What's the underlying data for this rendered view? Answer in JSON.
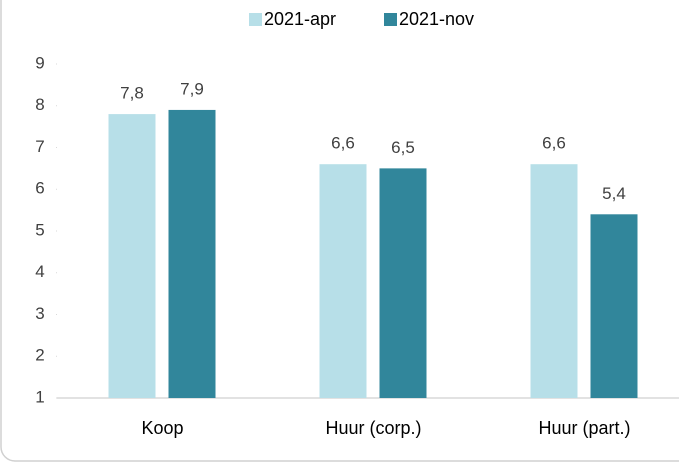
{
  "chart_data": {
    "type": "bar",
    "categories": [
      "Koop",
      "Huur (corp.)",
      "Huur (part.)"
    ],
    "series": [
      {
        "name": "2021-apr",
        "color": "#b7dfe8",
        "values": [
          7.8,
          6.6,
          6.6
        ],
        "value_labels": [
          "7,8",
          "6,6",
          "6,6"
        ]
      },
      {
        "name": "2021-nov",
        "color": "#31869b",
        "values": [
          7.9,
          6.5,
          5.4
        ],
        "value_labels": [
          "7,9",
          "6,5",
          "5,4"
        ]
      }
    ],
    "ylim": [
      1,
      9
    ],
    "yticks": [
      1,
      2,
      3,
      4,
      5,
      6,
      7,
      8,
      9
    ],
    "legend": "top"
  }
}
